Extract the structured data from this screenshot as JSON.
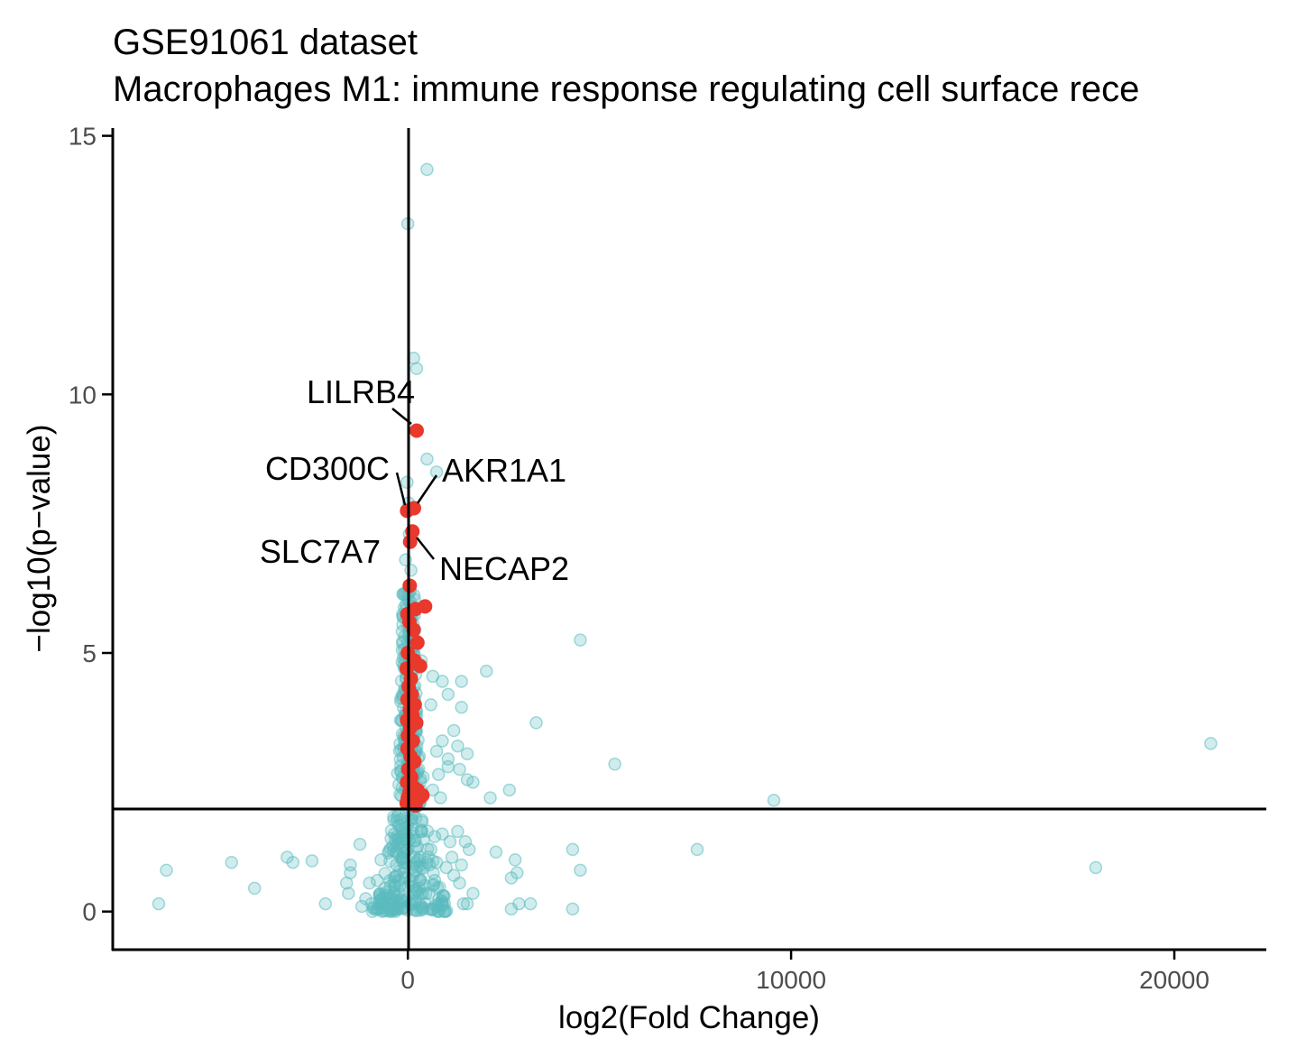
{
  "chart_data": {
    "type": "scatter",
    "title": "GSE91061 dataset",
    "subtitle": "Macrophages M1: immune response regulating cell surface rece",
    "xlabel": "log2(Fold Change)",
    "ylabel": "−log10(p−value)",
    "xlim": [
      -7700,
      22400
    ],
    "ylim": [
      -0.72,
      15.15
    ],
    "x_ticks": [
      0,
      10000,
      20000
    ],
    "y_ticks": [
      0,
      5,
      10,
      15
    ],
    "grid": false,
    "legend": "none",
    "reference_lines": {
      "vertical_x": 0,
      "horizontal_y": 2
    },
    "colors": {
      "background_points": "#5bbcbf",
      "highlight_points": "#e8392c",
      "lines": "#000000"
    },
    "series": [
      {
        "role": "background",
        "points": [
          [
            500,
            14.35
          ],
          [
            0,
            13.3
          ],
          [
            150,
            10.7
          ],
          [
            230,
            10.5
          ],
          [
            500,
            8.75
          ],
          [
            750,
            8.5
          ],
          [
            4500,
            5.25
          ],
          [
            2050,
            4.65
          ],
          [
            350,
            4.85
          ],
          [
            650,
            4.55
          ],
          [
            900,
            4.45
          ],
          [
            1050,
            4.2
          ],
          [
            1400,
            4.45
          ],
          [
            1400,
            3.95
          ],
          [
            600,
            4.0
          ],
          [
            3350,
            3.65
          ],
          [
            1200,
            3.5
          ],
          [
            900,
            3.3
          ],
          [
            1300,
            3.2
          ],
          [
            1550,
            3.05
          ],
          [
            750,
            3.1
          ],
          [
            1050,
            2.95
          ],
          [
            1050,
            2.8
          ],
          [
            1350,
            2.75
          ],
          [
            800,
            2.65
          ],
          [
            5400,
            2.85
          ],
          [
            1550,
            2.55
          ],
          [
            1700,
            2.5
          ],
          [
            2150,
            2.2
          ],
          [
            2650,
            2.35
          ],
          [
            9550,
            2.15
          ],
          [
            20950,
            3.25
          ],
          [
            650,
            2.35
          ],
          [
            850,
            2.2
          ],
          [
            400,
            2.6
          ],
          [
            200,
            3.8
          ],
          [
            -100,
            3.4
          ],
          [
            300,
            3.0
          ],
          [
            150,
            2.8
          ],
          [
            1300,
            1.55
          ],
          [
            1100,
            1.35
          ],
          [
            1500,
            1.35
          ],
          [
            1600,
            1.2
          ],
          [
            2300,
            1.15
          ],
          [
            2800,
            1.0
          ],
          [
            4300,
            1.2
          ],
          [
            7550,
            1.2
          ],
          [
            17950,
            0.85
          ],
          [
            4500,
            0.8
          ],
          [
            2700,
            0.65
          ],
          [
            2850,
            0.75
          ],
          [
            1400,
            0.9
          ],
          [
            1350,
            0.55
          ],
          [
            1700,
            0.35
          ],
          [
            1450,
            0.15
          ],
          [
            2700,
            0.05
          ],
          [
            3200,
            0.15
          ],
          [
            4300,
            0.05
          ],
          [
            2900,
            0.15
          ],
          [
            1550,
            0.15
          ],
          [
            -6300,
            0.8
          ],
          [
            -6500,
            0.15
          ],
          [
            -4600,
            0.95
          ],
          [
            -4000,
            0.45
          ],
          [
            -3150,
            1.05
          ],
          [
            -3000,
            0.95
          ],
          [
            -2500,
            0.98
          ],
          [
            -2150,
            0.15
          ],
          [
            -1600,
            0.55
          ],
          [
            -1500,
            0.75
          ],
          [
            -1500,
            0.9
          ],
          [
            -1250,
            1.3
          ],
          [
            -1550,
            0.35
          ],
          [
            -1100,
            0.25
          ],
          [
            -950,
            0.15
          ],
          [
            -800,
            0.6
          ],
          [
            -600,
            0.45
          ],
          [
            -400,
            0.25
          ],
          [
            -700,
            1.0
          ],
          [
            -1000,
            0.55
          ],
          [
            -300,
            0.9
          ],
          [
            -200,
            0.5
          ],
          [
            -100,
            0.75
          ],
          [
            -50,
            1.4
          ],
          [
            -150,
            1.6
          ],
          [
            100,
            1.9
          ],
          [
            250,
            1.25
          ],
          [
            350,
            1.55
          ],
          [
            500,
            0.95
          ],
          [
            550,
            0.35
          ],
          [
            700,
            0.6
          ],
          [
            800,
            0.15
          ],
          [
            950,
            0.3
          ],
          [
            1000,
            0.85
          ],
          [
            1150,
            1.05
          ],
          [
            700,
            1.45
          ],
          [
            400,
            0.05
          ],
          [
            200,
            0.2
          ],
          [
            -250,
            0.05
          ],
          [
            -500,
            0.05
          ],
          [
            50,
            0.6
          ],
          [
            150,
            1.05
          ],
          [
            -350,
            1.5
          ],
          [
            600,
            1.2
          ],
          [
            900,
            1.5
          ],
          [
            1200,
            0.7
          ],
          [
            -800,
            0.05
          ],
          [
            -1200,
            0.1
          ],
          [
            300,
            0.45
          ],
          [
            750,
            0.95
          ],
          [
            30,
            5.4
          ],
          [
            60,
            6.2
          ],
          [
            -60,
            6.8
          ],
          [
            90,
            5.9
          ],
          [
            -40,
            4.6
          ],
          [
            40,
            7.3
          ],
          [
            20,
            7.9
          ],
          [
            -20,
            8.3
          ],
          [
            80,
            6.6
          ]
        ]
      },
      {
        "role": "highlight",
        "points": [
          [
            230,
            9.3
          ],
          [
            160,
            7.8
          ],
          [
            -20,
            7.75
          ],
          [
            120,
            7.35
          ],
          [
            60,
            7.15
          ],
          [
            50,
            6.3
          ],
          [
            450,
            5.9
          ],
          [
            200,
            5.85
          ],
          [
            -10,
            5.75
          ],
          [
            40,
            5.6
          ],
          [
            150,
            5.45
          ],
          [
            250,
            5.2
          ],
          [
            0,
            5.0
          ],
          [
            180,
            4.85
          ],
          [
            320,
            4.75
          ],
          [
            -30,
            4.7
          ],
          [
            80,
            4.5
          ],
          [
            20,
            4.35
          ],
          [
            100,
            4.2
          ],
          [
            -10,
            4.1
          ],
          [
            180,
            4.0
          ],
          [
            50,
            3.9
          ],
          [
            120,
            3.8
          ],
          [
            -20,
            3.7
          ],
          [
            220,
            3.65
          ],
          [
            60,
            3.55
          ],
          [
            0,
            3.4
          ],
          [
            130,
            3.3
          ],
          [
            -10,
            3.15
          ],
          [
            70,
            3.0
          ],
          [
            170,
            2.9
          ],
          [
            10,
            2.75
          ],
          [
            90,
            2.6
          ],
          [
            -20,
            2.5
          ],
          [
            160,
            2.4
          ],
          [
            250,
            2.35
          ],
          [
            40,
            2.3
          ],
          [
            310,
            2.2
          ],
          [
            110,
            2.15
          ],
          [
            -30,
            2.1
          ],
          [
            200,
            2.05
          ],
          [
            380,
            2.25
          ],
          [
            60,
            2.45
          ],
          [
            0,
            2.2
          ]
        ]
      }
    ],
    "labeled_genes": [
      {
        "name": "LILRB4",
        "x": 230,
        "y": 9.3
      },
      {
        "name": "CD300C",
        "x": -20,
        "y": 7.75
      },
      {
        "name": "AKR1A1",
        "x": 160,
        "y": 7.8
      },
      {
        "name": "SLC7A7",
        "x": 60,
        "y": 7.15
      },
      {
        "name": "NECAP2",
        "x": 120,
        "y": 7.35
      }
    ]
  }
}
